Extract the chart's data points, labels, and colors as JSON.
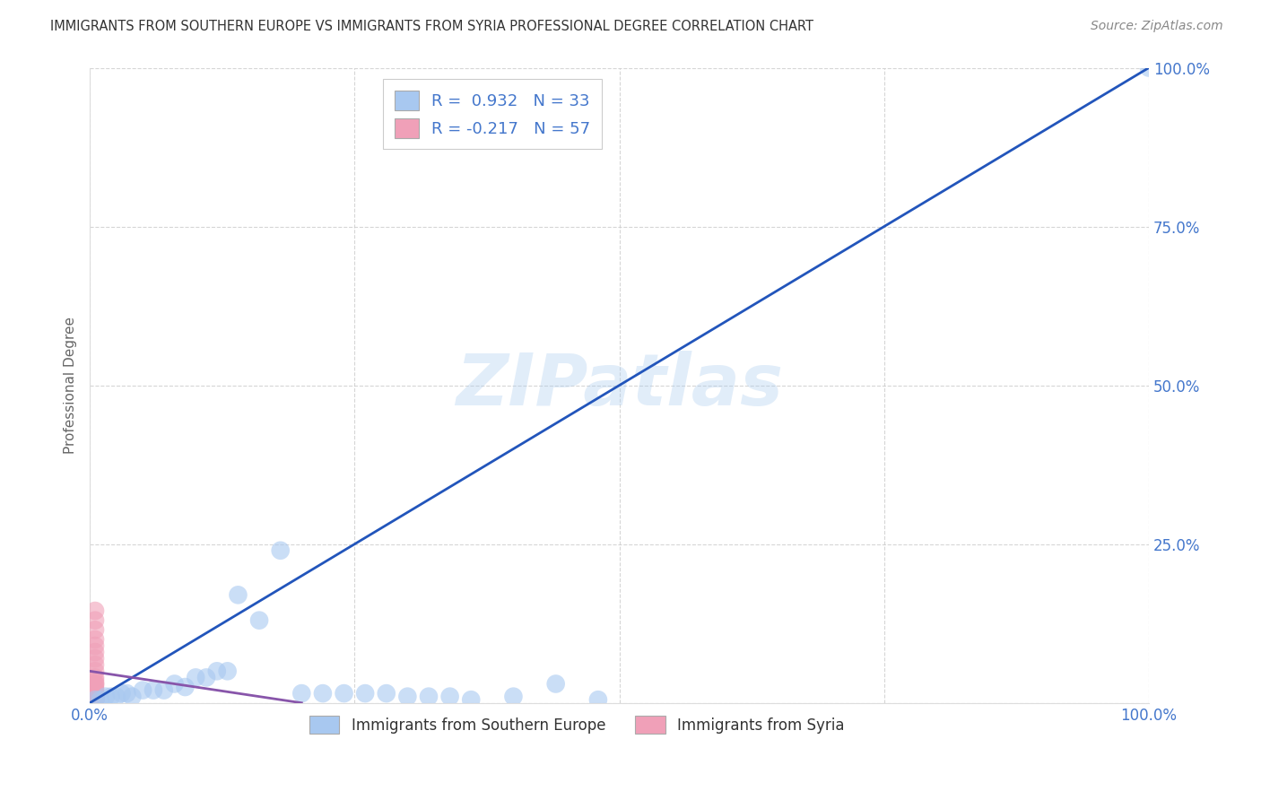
{
  "title": "IMMIGRANTS FROM SOUTHERN EUROPE VS IMMIGRANTS FROM SYRIA PROFESSIONAL DEGREE CORRELATION CHART",
  "source": "Source: ZipAtlas.com",
  "ylabel": "Professional Degree",
  "legend_label_blue": "Immigrants from Southern Europe",
  "legend_label_pink": "Immigrants from Syria",
  "r_blue": 0.932,
  "n_blue": 33,
  "r_pink": -0.217,
  "n_pink": 57,
  "blue_color": "#a8c8f0",
  "pink_color": "#f0a0b8",
  "blue_line_color": "#2255bb",
  "pink_line_color": "#8855aa",
  "watermark": "ZIPatlas",
  "background_color": "#ffffff",
  "grid_color": "#cccccc",
  "title_color": "#333333",
  "source_color": "#888888",
  "tick_color": "#4477cc",
  "label_color": "#666666",
  "blue_scatter_x": [
    0.005,
    0.01,
    0.015,
    0.02,
    0.025,
    0.03,
    0.035,
    0.04,
    0.05,
    0.06,
    0.07,
    0.08,
    0.09,
    0.1,
    0.11,
    0.12,
    0.13,
    0.14,
    0.16,
    0.18,
    0.2,
    0.22,
    0.24,
    0.26,
    0.28,
    0.3,
    0.32,
    0.34,
    0.36,
    0.4,
    0.44,
    0.48,
    1.0
  ],
  "blue_scatter_y": [
    0.005,
    0.005,
    0.01,
    0.01,
    0.01,
    0.015,
    0.015,
    0.01,
    0.02,
    0.02,
    0.02,
    0.03,
    0.025,
    0.04,
    0.04,
    0.05,
    0.05,
    0.17,
    0.13,
    0.24,
    0.015,
    0.015,
    0.015,
    0.015,
    0.015,
    0.01,
    0.01,
    0.01,
    0.005,
    0.01,
    0.03,
    0.005,
    1.0
  ],
  "pink_scatter_x": [
    0.005,
    0.005,
    0.005,
    0.005,
    0.005,
    0.005,
    0.005,
    0.005,
    0.005,
    0.005,
    0.005,
    0.005,
    0.005,
    0.005,
    0.005,
    0.005,
    0.005,
    0.005,
    0.005,
    0.005,
    0.005,
    0.005,
    0.005,
    0.005,
    0.005,
    0.005,
    0.005,
    0.005,
    0.005,
    0.005,
    0.005,
    0.005,
    0.005,
    0.005,
    0.005,
    0.005,
    0.005,
    0.005,
    0.005,
    0.005,
    0.005,
    0.005,
    0.005,
    0.005,
    0.005,
    0.005,
    0.005,
    0.005,
    0.005,
    0.005,
    0.005,
    0.005,
    0.005,
    0.005,
    0.005,
    0.005,
    0.005
  ],
  "pink_scatter_y": [
    0.005,
    0.01,
    0.015,
    0.02,
    0.025,
    0.03,
    0.035,
    0.04,
    0.05,
    0.06,
    0.07,
    0.08,
    0.09,
    0.1,
    0.115,
    0.13,
    0.145,
    0.005,
    0.01,
    0.02,
    0.03,
    0.005,
    0.01,
    0.005,
    0.015,
    0.005,
    0.01,
    0.005,
    0.005,
    0.005,
    0.005,
    0.005,
    0.005,
    0.005,
    0.005,
    0.005,
    0.005,
    0.005,
    0.005,
    0.005,
    0.005,
    0.005,
    0.005,
    0.005,
    0.005,
    0.005,
    0.005,
    0.005,
    0.005,
    0.005,
    0.005,
    0.005,
    0.005,
    0.005,
    0.005,
    0.005,
    0.005
  ],
  "blue_line_x": [
    0.0,
    1.0
  ],
  "blue_line_y": [
    0.0,
    1.0
  ],
  "pink_line_x": [
    0.0,
    0.2
  ],
  "pink_line_y": [
    0.05,
    0.0
  ],
  "xlim": [
    0.0,
    1.0
  ],
  "ylim": [
    0.0,
    1.0
  ],
  "xticks": [
    0.0,
    0.25,
    0.5,
    0.75,
    1.0
  ],
  "yticks": [
    0.0,
    0.25,
    0.5,
    0.75,
    1.0
  ],
  "xticklabels_show": {
    "0.0": "0.0%",
    "1.0": "100.0%"
  },
  "yticklabels_show": {
    "0.25": "25.0%",
    "0.5": "50.0%",
    "0.75": "75.0%",
    "1.0": "100.0%"
  }
}
